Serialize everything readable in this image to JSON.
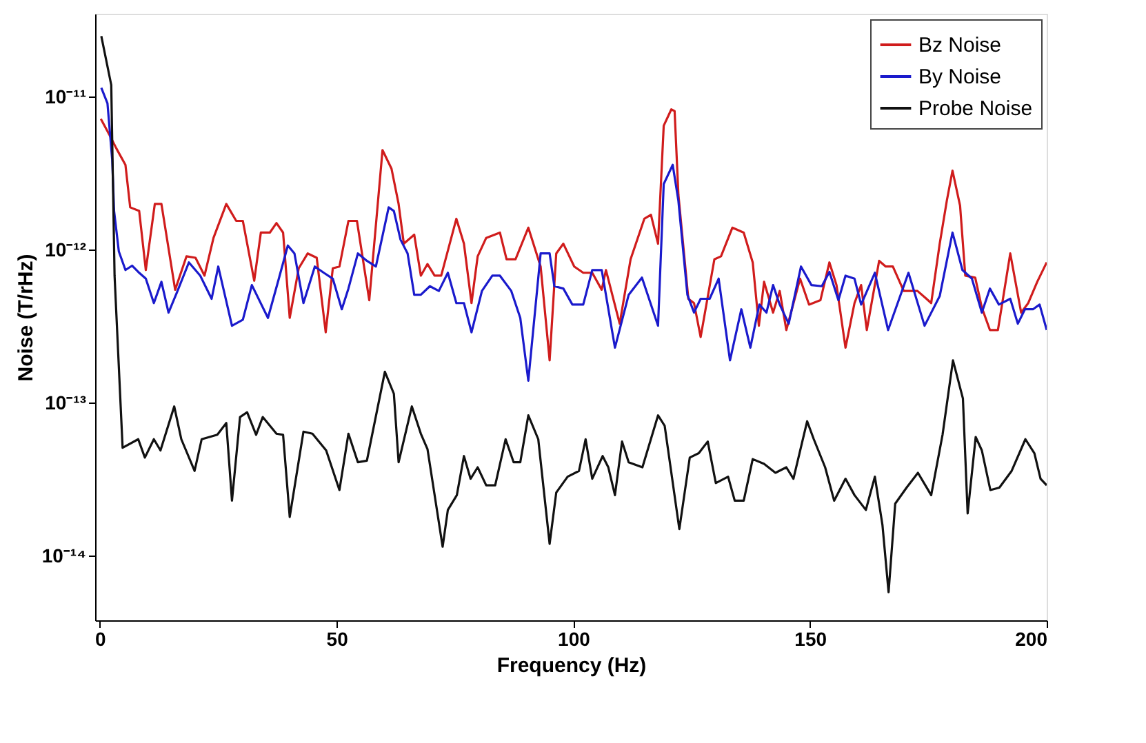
{
  "chart_data": {
    "type": "line",
    "xlabel": "Frequency (Hz)",
    "ylabel": "Noise (T/rHz)",
    "log": "y",
    "xlim": [
      -1,
      200
    ],
    "xticks": [
      0,
      50,
      100,
      150,
      200
    ],
    "ylim": [
      3.8e-15,
      3.5e-11
    ],
    "yticks": [
      {
        "value": 1e-14,
        "label": "10⁻¹⁴"
      },
      {
        "value": 1e-13,
        "label": "10⁻¹³"
      },
      {
        "value": 1e-12,
        "label": "10⁻¹²"
      },
      {
        "value": 1e-11,
        "label": "10⁻¹¹"
      }
    ],
    "grid": false,
    "legend": "top right",
    "marker": "none",
    "line_style": "solid",
    "series": [
      {
        "name": "Bz Noise",
        "color": "#d01c1c",
        "x": [
          0.2,
          2.1,
          3.5,
          5.4,
          6.4,
          8.3,
          9.7,
          11.6,
          13.0,
          15.9,
          18.3,
          20.2,
          22.1,
          24.0,
          26.7,
          28.8,
          30.2,
          32.6,
          34.0,
          35.9,
          37.3,
          38.7,
          40.1,
          42.0,
          43.9,
          45.8,
          47.7,
          49.2,
          50.6,
          52.5,
          54.3,
          56.9,
          59.7,
          61.6,
          63.1,
          64.2,
          66.4,
          67.8,
          69.2,
          70.7,
          72.1,
          75.3,
          76.9,
          78.5,
          79.8,
          81.6,
          84.5,
          85.9,
          87.8,
          90.5,
          93.1,
          95.0,
          96.4,
          97.9,
          100.2,
          102.1,
          104.0,
          106.0,
          106.9,
          109.8,
          112.1,
          115.0,
          116.4,
          117.9,
          119.1,
          120.7,
          121.4,
          122.2,
          124.3,
          125.5,
          126.9,
          129.8,
          131.2,
          133.6,
          136.0,
          137.9,
          139.2,
          140.3,
          142.2,
          143.6,
          145.0,
          147.9,
          149.8,
          152.2,
          154.1,
          155.6,
          157.5,
          159.4,
          160.8,
          162.0,
          164.6,
          166.0,
          167.5,
          169.8,
          172.7,
          174.6,
          175.6,
          177.4,
          178.9,
          180.1,
          181.7,
          182.8,
          184.9,
          186.3,
          188.0,
          189.7,
          192.3,
          194.6,
          196.1,
          198.0,
          200
        ],
        "values": [
          7.2e-12,
          5.6e-12,
          4.6e-12,
          3.6e-12,
          1.9e-12,
          1.8e-12,
          7.4e-13,
          2e-12,
          2e-12,
          5.5e-13,
          9.1e-13,
          8.9e-13,
          6.8e-13,
          1.2e-12,
          2e-12,
          1.55e-12,
          1.55e-12,
          6.3e-13,
          1.3e-12,
          1.3e-12,
          1.5e-12,
          1.3e-12,
          3.6e-13,
          7.6e-13,
          9.5e-13,
          8.9e-13,
          2.9e-13,
          7.6e-13,
          7.8e-13,
          1.55e-12,
          1.55e-12,
          4.7e-13,
          4.5e-12,
          3.4e-12,
          2e-12,
          1.1e-12,
          1.26e-12,
          6.8e-13,
          8.1e-13,
          6.8e-13,
          6.8e-13,
          1.6e-12,
          1.1e-12,
          4.5e-13,
          9.1e-13,
          1.2e-12,
          1.3e-12,
          8.7e-13,
          8.7e-13,
          1.4e-12,
          7.8e-13,
          1.9e-13,
          9.5e-13,
          1.1e-12,
          7.8e-13,
          7.1e-13,
          7.1e-13,
          5.5e-13,
          7.4e-13,
          3.3e-13,
          8.7e-13,
          1.6e-12,
          1.7e-12,
          1.1e-12,
          6.5e-12,
          8.3e-12,
          8.1e-12,
          2.3e-12,
          4.8e-13,
          4.5e-13,
          2.7e-13,
          8.7e-13,
          9.1e-13,
          1.4e-12,
          1.3e-12,
          8.3e-13,
          3.2e-13,
          6.2e-13,
          3.9e-13,
          5.4e-13,
          3e-13,
          6.5e-13,
          4.4e-13,
          4.7e-13,
          8.3e-13,
          5.9e-13,
          2.3e-13,
          4.5e-13,
          5.9e-13,
          3e-13,
          8.5e-13,
          7.8e-13,
          7.8e-13,
          5.4e-13,
          5.4e-13,
          4.8e-13,
          4.5e-13,
          1.1e-12,
          2.1e-12,
          3.3e-12,
          1.95e-12,
          6.8e-13,
          6.6e-13,
          4.2e-13,
          3e-13,
          3e-13,
          9.5e-13,
          3.9e-13,
          4.5e-13,
          6.2e-13,
          8.3e-13
        ]
      },
      {
        "name": "By Noise",
        "color": "#1a1acc",
        "x": [
          0.3,
          1.6,
          2.6,
          3.0,
          4.0,
          5.4,
          6.8,
          8.3,
          9.7,
          11.4,
          13.0,
          14.5,
          16.4,
          18.8,
          21.2,
          23.6,
          25.0,
          27.9,
          30.2,
          32.1,
          35.5,
          37.8,
          39.7,
          41.1,
          43.0,
          45.4,
          47.3,
          49.2,
          51.1,
          52.5,
          54.5,
          56.4,
          58.3,
          61.0,
          62.1,
          63.5,
          65.0,
          66.4,
          67.8,
          69.7,
          71.6,
          73.5,
          75.3,
          76.9,
          78.5,
          80.7,
          82.9,
          84.5,
          86.9,
          88.8,
          90.5,
          93.1,
          95.0,
          96.0,
          97.9,
          99.8,
          102.1,
          104.0,
          106.0,
          108.8,
          111.7,
          114.5,
          117.9,
          119.1,
          121.0,
          122.2,
          124.1,
          125.5,
          126.9,
          128.8,
          130.7,
          133.1,
          135.5,
          137.4,
          139.3,
          140.8,
          142.2,
          143.6,
          145.5,
          148.1,
          150.3,
          152.5,
          154.1,
          156.0,
          157.5,
          159.4,
          160.8,
          163.7,
          166.5,
          170.8,
          174.2,
          177.4,
          180.1,
          182.2,
          184.2,
          186.3,
          188.0,
          189.9,
          192.3,
          193.9,
          195.4,
          197.1,
          198.5,
          200
        ],
        "values": [
          1.15e-11,
          9.1e-12,
          3.9e-12,
          1.8e-12,
          9.8e-13,
          7.4e-13,
          7.9e-13,
          7.1e-13,
          6.5e-13,
          4.5e-13,
          6.2e-13,
          3.9e-13,
          5.4e-13,
          8.3e-13,
          6.8e-13,
          4.8e-13,
          7.8e-13,
          3.2e-13,
          3.5e-13,
          5.9e-13,
          3.6e-13,
          6.5e-13,
          1.07e-12,
          9.5e-13,
          4.5e-13,
          7.8e-13,
          7.1e-13,
          6.5e-13,
          4.1e-13,
          5.6e-13,
          9.5e-13,
          8.5e-13,
          7.8e-13,
          1.9e-12,
          1.8e-12,
          1.17e-12,
          9.5e-13,
          5.1e-13,
          5.1e-13,
          5.8e-13,
          5.4e-13,
          7.1e-13,
          4.5e-13,
          4.5e-13,
          2.9e-13,
          5.4e-13,
          6.8e-13,
          6.8e-13,
          5.4e-13,
          3.6e-13,
          1.4e-13,
          9.5e-13,
          9.5e-13,
          5.8e-13,
          5.6e-13,
          4.4e-13,
          4.4e-13,
          7.4e-13,
          7.4e-13,
          2.3e-13,
          5.1e-13,
          6.6e-13,
          3.2e-13,
          2.7e-12,
          3.6e-12,
          2.1e-12,
          5.1e-13,
          3.9e-13,
          4.8e-13,
          4.8e-13,
          6.5e-13,
          1.9e-13,
          4.1e-13,
          2.3e-13,
          4.4e-13,
          3.9e-13,
          5.9e-13,
          4.4e-13,
          3.3e-13,
          7.8e-13,
          5.9e-13,
          5.8e-13,
          7.2e-13,
          4.7e-13,
          6.8e-13,
          6.5e-13,
          4.4e-13,
          7.1e-13,
          3e-13,
          7.1e-13,
          3.2e-13,
          5e-13,
          1.3e-12,
          7.4e-13,
          6.5e-13,
          3.9e-13,
          5.6e-13,
          4.4e-13,
          4.8e-13,
          3.3e-13,
          4.1e-13,
          4.1e-13,
          4.4e-13,
          3e-13
        ]
      },
      {
        "name": "Probe Noise",
        "color": "#111111",
        "x": [
          0.3,
          2.4,
          3.1,
          4.8,
          8.1,
          9.5,
          11.4,
          12.8,
          15.7,
          17.2,
          20.0,
          21.5,
          24.8,
          26.7,
          27.9,
          29.6,
          31.1,
          33.0,
          34.4,
          37.3,
          38.7,
          40.1,
          43.0,
          44.9,
          47.8,
          50.6,
          52.5,
          54.5,
          56.4,
          60.2,
          62.1,
          63.1,
          65.9,
          67.8,
          69.2,
          72.4,
          73.5,
          75.4,
          76.9,
          78.3,
          79.8,
          81.6,
          83.5,
          85.7,
          87.4,
          88.8,
          90.5,
          92.6,
          95.0,
          96.4,
          98.8,
          101.2,
          102.6,
          104.0,
          106.2,
          107.4,
          108.8,
          110.3,
          111.7,
          114.6,
          117.9,
          119.3,
          122.4,
          124.6,
          126.5,
          128.4,
          130.1,
          132.7,
          134.1,
          136.0,
          137.9,
          140.3,
          142.7,
          145.0,
          146.5,
          149.4,
          150.8,
          153.2,
          155.1,
          157.5,
          159.4,
          161.8,
          163.7,
          165.3,
          166.6,
          168.0,
          170.4,
          172.8,
          175.6,
          178.0,
          180.2,
          182.3,
          183.3,
          185.0,
          186.3,
          188.1,
          190.0,
          192.6,
          195.5,
          197.4,
          198.7,
          200
        ],
        "values": [
          2.5e-11,
          1.2e-11,
          6.8e-13,
          5.1e-14,
          5.8e-14,
          4.4e-14,
          5.8e-14,
          4.9e-14,
          9.5e-14,
          5.8e-14,
          3.6e-14,
          5.8e-14,
          6.2e-14,
          7.4e-14,
          2.3e-14,
          8.1e-14,
          8.7e-14,
          6.2e-14,
          8.1e-14,
          6.3e-14,
          6.2e-14,
          1.8e-14,
          6.5e-14,
          6.3e-14,
          4.9e-14,
          2.7e-14,
          6.3e-14,
          4.1e-14,
          4.2e-14,
          1.6e-13,
          1.15e-13,
          4.1e-14,
          9.5e-14,
          6.3e-14,
          5e-14,
          1.15e-14,
          2e-14,
          2.5e-14,
          4.5e-14,
          3.2e-14,
          3.8e-14,
          2.9e-14,
          2.9e-14,
          5.8e-14,
          4.1e-14,
          4.1e-14,
          8.3e-14,
          5.8e-14,
          1.2e-14,
          2.6e-14,
          3.3e-14,
          3.6e-14,
          5.8e-14,
          3.2e-14,
          4.5e-14,
          3.8e-14,
          2.5e-14,
          5.6e-14,
          4.1e-14,
          3.8e-14,
          8.3e-14,
          7.1e-14,
          1.5e-14,
          4.4e-14,
          4.7e-14,
          5.6e-14,
          3e-14,
          3.3e-14,
          2.3e-14,
          2.3e-14,
          4.3e-14,
          4e-14,
          3.5e-14,
          3.8e-14,
          3.2e-14,
          7.6e-14,
          5.8e-14,
          3.8e-14,
          2.3e-14,
          3.2e-14,
          2.5e-14,
          2e-14,
          3.3e-14,
          1.6e-14,
          5.8e-15,
          2.2e-14,
          2.8e-14,
          3.5e-14,
          2.5e-14,
          6.2e-14,
          1.9e-13,
          1.07e-13,
          1.9e-14,
          6e-14,
          4.9e-14,
          2.7e-14,
          2.8e-14,
          3.6e-14,
          5.8e-14,
          4.7e-14,
          3.2e-14,
          2.9e-14
        ]
      }
    ]
  }
}
